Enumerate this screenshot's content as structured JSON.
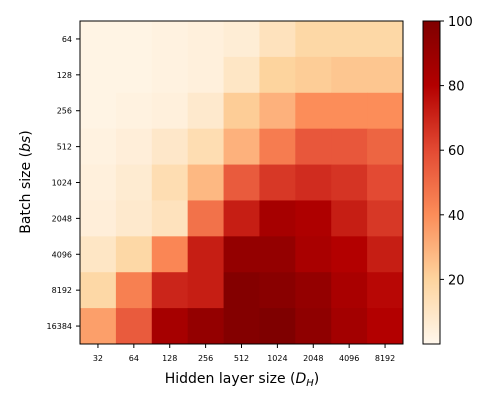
{
  "chart_data": {
    "type": "heatmap",
    "title": "",
    "xlabel": "Hidden layer size (D_H)",
    "ylabel": "Batch size (bs)",
    "x_categories": [
      "32",
      "64",
      "128",
      "256",
      "512",
      "1024",
      "2048",
      "4096",
      "8192"
    ],
    "y_categories": [
      "64",
      "128",
      "256",
      "512",
      "1024",
      "2048",
      "4096",
      "8192",
      "16384"
    ],
    "values": [
      [
        2,
        2,
        3,
        4,
        6,
        12,
        18,
        18,
        18
      ],
      [
        2,
        2,
        3,
        4,
        10,
        20,
        22,
        24,
        24
      ],
      [
        2,
        3,
        4,
        8,
        22,
        30,
        40,
        40,
        40
      ],
      [
        3,
        5,
        9,
        15,
        30,
        45,
        56,
        56,
        52
      ],
      [
        4,
        7,
        15,
        28,
        55,
        65,
        68,
        66,
        60
      ],
      [
        5,
        8,
        12,
        48,
        72,
        85,
        82,
        72,
        65
      ],
      [
        10,
        18,
        42,
        72,
        92,
        92,
        84,
        80,
        72
      ],
      [
        18,
        44,
        70,
        72,
        98,
        96,
        92,
        84,
        78
      ],
      [
        35,
        55,
        85,
        92,
        98,
        100,
        94,
        86,
        80
      ]
    ],
    "colorbar": {
      "min": 0,
      "max": 100,
      "ticks": [
        "20",
        "40",
        "60",
        "80",
        "100"
      ],
      "colormap": "OrRd-like"
    }
  },
  "labels": {
    "xlabel_main": "Hidden layer size (",
    "xlabel_sym": "D",
    "xlabel_sub": "H",
    "xlabel_close": ")",
    "ylabel_main": "Batch size (",
    "ylabel_sym": "bs",
    "ylabel_close": ")"
  },
  "colors": {
    "c0": "#fff7ec",
    "c20": "#fdd49e",
    "c40": "#fc8d59",
    "c60": "#e34a33",
    "c80": "#b30000",
    "c100": "#7f0000"
  }
}
